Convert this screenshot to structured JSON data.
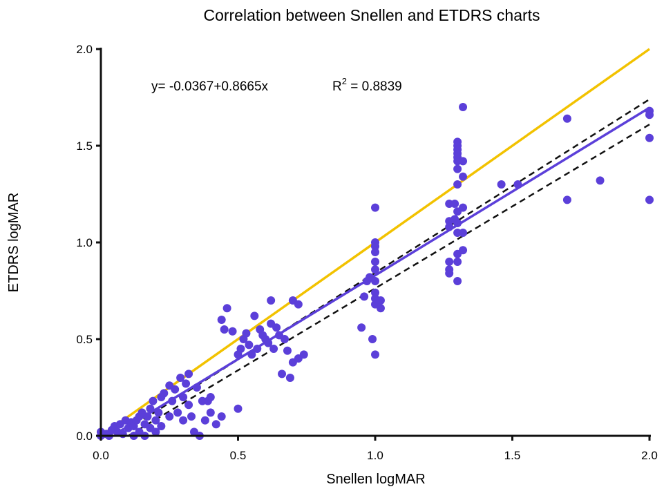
{
  "chart_data": {
    "type": "scatter",
    "title": "Correlation between Snellen and ETDRS charts",
    "xlabel": "Snellen logMAR",
    "ylabel": "ETDRS logMAR",
    "xlim": [
      0,
      2.0
    ],
    "ylim": [
      0,
      2.0
    ],
    "xticks": [
      "0.0",
      "0.5",
      "1.0",
      "1.5",
      "2.0"
    ],
    "yticks": [
      "0.0",
      "0.5",
      "1.0",
      "1.5",
      "2.0"
    ],
    "grid": false,
    "equation": "y= -0.0367+0.8665x",
    "r_squared_label": "R",
    "r_squared_sup": "2",
    "r_squared_value": " = 0.8839",
    "colors": {
      "points": "#5b3fd9",
      "regression": "#5b3fd9",
      "identity": "#f2c200",
      "confidence": "#111111",
      "axis": "#111111"
    },
    "lines": {
      "identity": {
        "from": [
          0,
          0
        ],
        "to": [
          2.0,
          2.0
        ]
      },
      "regression": {
        "intercept": -0.0367,
        "slope": 0.8665,
        "x_range": [
          0.05,
          2.0
        ]
      },
      "confidence_upper": {
        "from": [
          0.06,
          0
        ],
        "to": [
          2.0,
          1.74
        ]
      },
      "confidence_lower": {
        "from": [
          0.1,
          0
        ],
        "to": [
          2.0,
          1.61
        ]
      }
    },
    "points": [
      [
        0.0,
        0.0
      ],
      [
        0.0,
        0.02
      ],
      [
        0.02,
        0.01
      ],
      [
        0.03,
        0.0
      ],
      [
        0.04,
        0.03
      ],
      [
        0.05,
        0.05
      ],
      [
        0.06,
        0.02
      ],
      [
        0.07,
        0.06
      ],
      [
        0.08,
        0.01
      ],
      [
        0.09,
        0.08
      ],
      [
        0.1,
        0.04
      ],
      [
        0.11,
        0.07
      ],
      [
        0.12,
        0.05
      ],
      [
        0.12,
        0.0
      ],
      [
        0.13,
        0.08
      ],
      [
        0.14,
        0.1
      ],
      [
        0.14,
        0.02
      ],
      [
        0.15,
        0.12
      ],
      [
        0.16,
        0.06
      ],
      [
        0.16,
        0.0
      ],
      [
        0.17,
        0.1
      ],
      [
        0.18,
        0.14
      ],
      [
        0.18,
        0.04
      ],
      [
        0.19,
        0.18
      ],
      [
        0.2,
        0.08
      ],
      [
        0.2,
        0.02
      ],
      [
        0.21,
        0.12
      ],
      [
        0.22,
        0.2
      ],
      [
        0.22,
        0.05
      ],
      [
        0.23,
        0.22
      ],
      [
        0.25,
        0.26
      ],
      [
        0.25,
        0.1
      ],
      [
        0.26,
        0.18
      ],
      [
        0.27,
        0.24
      ],
      [
        0.28,
        0.12
      ],
      [
        0.29,
        0.3
      ],
      [
        0.3,
        0.2
      ],
      [
        0.3,
        0.08
      ],
      [
        0.31,
        0.27
      ],
      [
        0.32,
        0.16
      ],
      [
        0.32,
        0.32
      ],
      [
        0.33,
        0.1
      ],
      [
        0.34,
        0.02
      ],
      [
        0.35,
        0.25
      ],
      [
        0.36,
        0.0
      ],
      [
        0.37,
        0.18
      ],
      [
        0.38,
        0.08
      ],
      [
        0.39,
        0.18
      ],
      [
        0.4,
        0.2
      ],
      [
        0.4,
        0.12
      ],
      [
        0.42,
        0.06
      ],
      [
        0.44,
        0.1
      ],
      [
        0.44,
        0.6
      ],
      [
        0.45,
        0.55
      ],
      [
        0.46,
        0.66
      ],
      [
        0.48,
        0.54
      ],
      [
        0.5,
        0.42
      ],
      [
        0.5,
        0.14
      ],
      [
        0.51,
        0.45
      ],
      [
        0.52,
        0.5
      ],
      [
        0.53,
        0.53
      ],
      [
        0.54,
        0.47
      ],
      [
        0.55,
        0.42
      ],
      [
        0.56,
        0.62
      ],
      [
        0.57,
        0.45
      ],
      [
        0.58,
        0.55
      ],
      [
        0.59,
        0.52
      ],
      [
        0.6,
        0.5
      ],
      [
        0.61,
        0.48
      ],
      [
        0.62,
        0.7
      ],
      [
        0.62,
        0.58
      ],
      [
        0.63,
        0.45
      ],
      [
        0.64,
        0.56
      ],
      [
        0.65,
        0.52
      ],
      [
        0.66,
        0.32
      ],
      [
        0.67,
        0.5
      ],
      [
        0.68,
        0.44
      ],
      [
        0.69,
        0.3
      ],
      [
        0.7,
        0.7
      ],
      [
        0.7,
        0.38
      ],
      [
        0.72,
        0.68
      ],
      [
        0.72,
        0.4
      ],
      [
        0.74,
        0.42
      ],
      [
        0.95,
        0.56
      ],
      [
        0.96,
        0.72
      ],
      [
        0.97,
        0.8
      ],
      [
        0.98,
        0.82
      ],
      [
        0.99,
        0.5
      ],
      [
        1.0,
        1.18
      ],
      [
        1.0,
        1.0
      ],
      [
        1.0,
        0.98
      ],
      [
        1.0,
        0.95
      ],
      [
        1.0,
        0.9
      ],
      [
        1.0,
        0.86
      ],
      [
        1.0,
        0.8
      ],
      [
        1.0,
        0.74
      ],
      [
        1.0,
        0.71
      ],
      [
        1.0,
        0.68
      ],
      [
        1.0,
        0.42
      ],
      [
        1.02,
        0.7
      ],
      [
        1.02,
        0.66
      ],
      [
        1.27,
        1.2
      ],
      [
        1.27,
        1.11
      ],
      [
        1.27,
        1.08
      ],
      [
        1.27,
        0.9
      ],
      [
        1.27,
        0.86
      ],
      [
        1.27,
        0.84
      ],
      [
        1.29,
        1.2
      ],
      [
        1.29,
        1.12
      ],
      [
        1.3,
        1.52
      ],
      [
        1.3,
        1.5
      ],
      [
        1.3,
        1.48
      ],
      [
        1.3,
        1.46
      ],
      [
        1.3,
        1.44
      ],
      [
        1.3,
        1.42
      ],
      [
        1.3,
        1.38
      ],
      [
        1.3,
        1.3
      ],
      [
        1.3,
        1.16
      ],
      [
        1.3,
        1.1
      ],
      [
        1.3,
        1.05
      ],
      [
        1.3,
        0.94
      ],
      [
        1.3,
        0.9
      ],
      [
        1.3,
        0.8
      ],
      [
        1.32,
        1.7
      ],
      [
        1.32,
        1.42
      ],
      [
        1.32,
        1.34
      ],
      [
        1.32,
        1.18
      ],
      [
        1.32,
        1.05
      ],
      [
        1.32,
        0.96
      ],
      [
        1.46,
        1.3
      ],
      [
        1.52,
        1.3
      ],
      [
        1.7,
        1.64
      ],
      [
        1.7,
        1.22
      ],
      [
        1.82,
        1.32
      ],
      [
        2.0,
        1.68
      ],
      [
        2.0,
        1.66
      ],
      [
        2.0,
        1.54
      ],
      [
        2.0,
        1.22
      ]
    ]
  }
}
